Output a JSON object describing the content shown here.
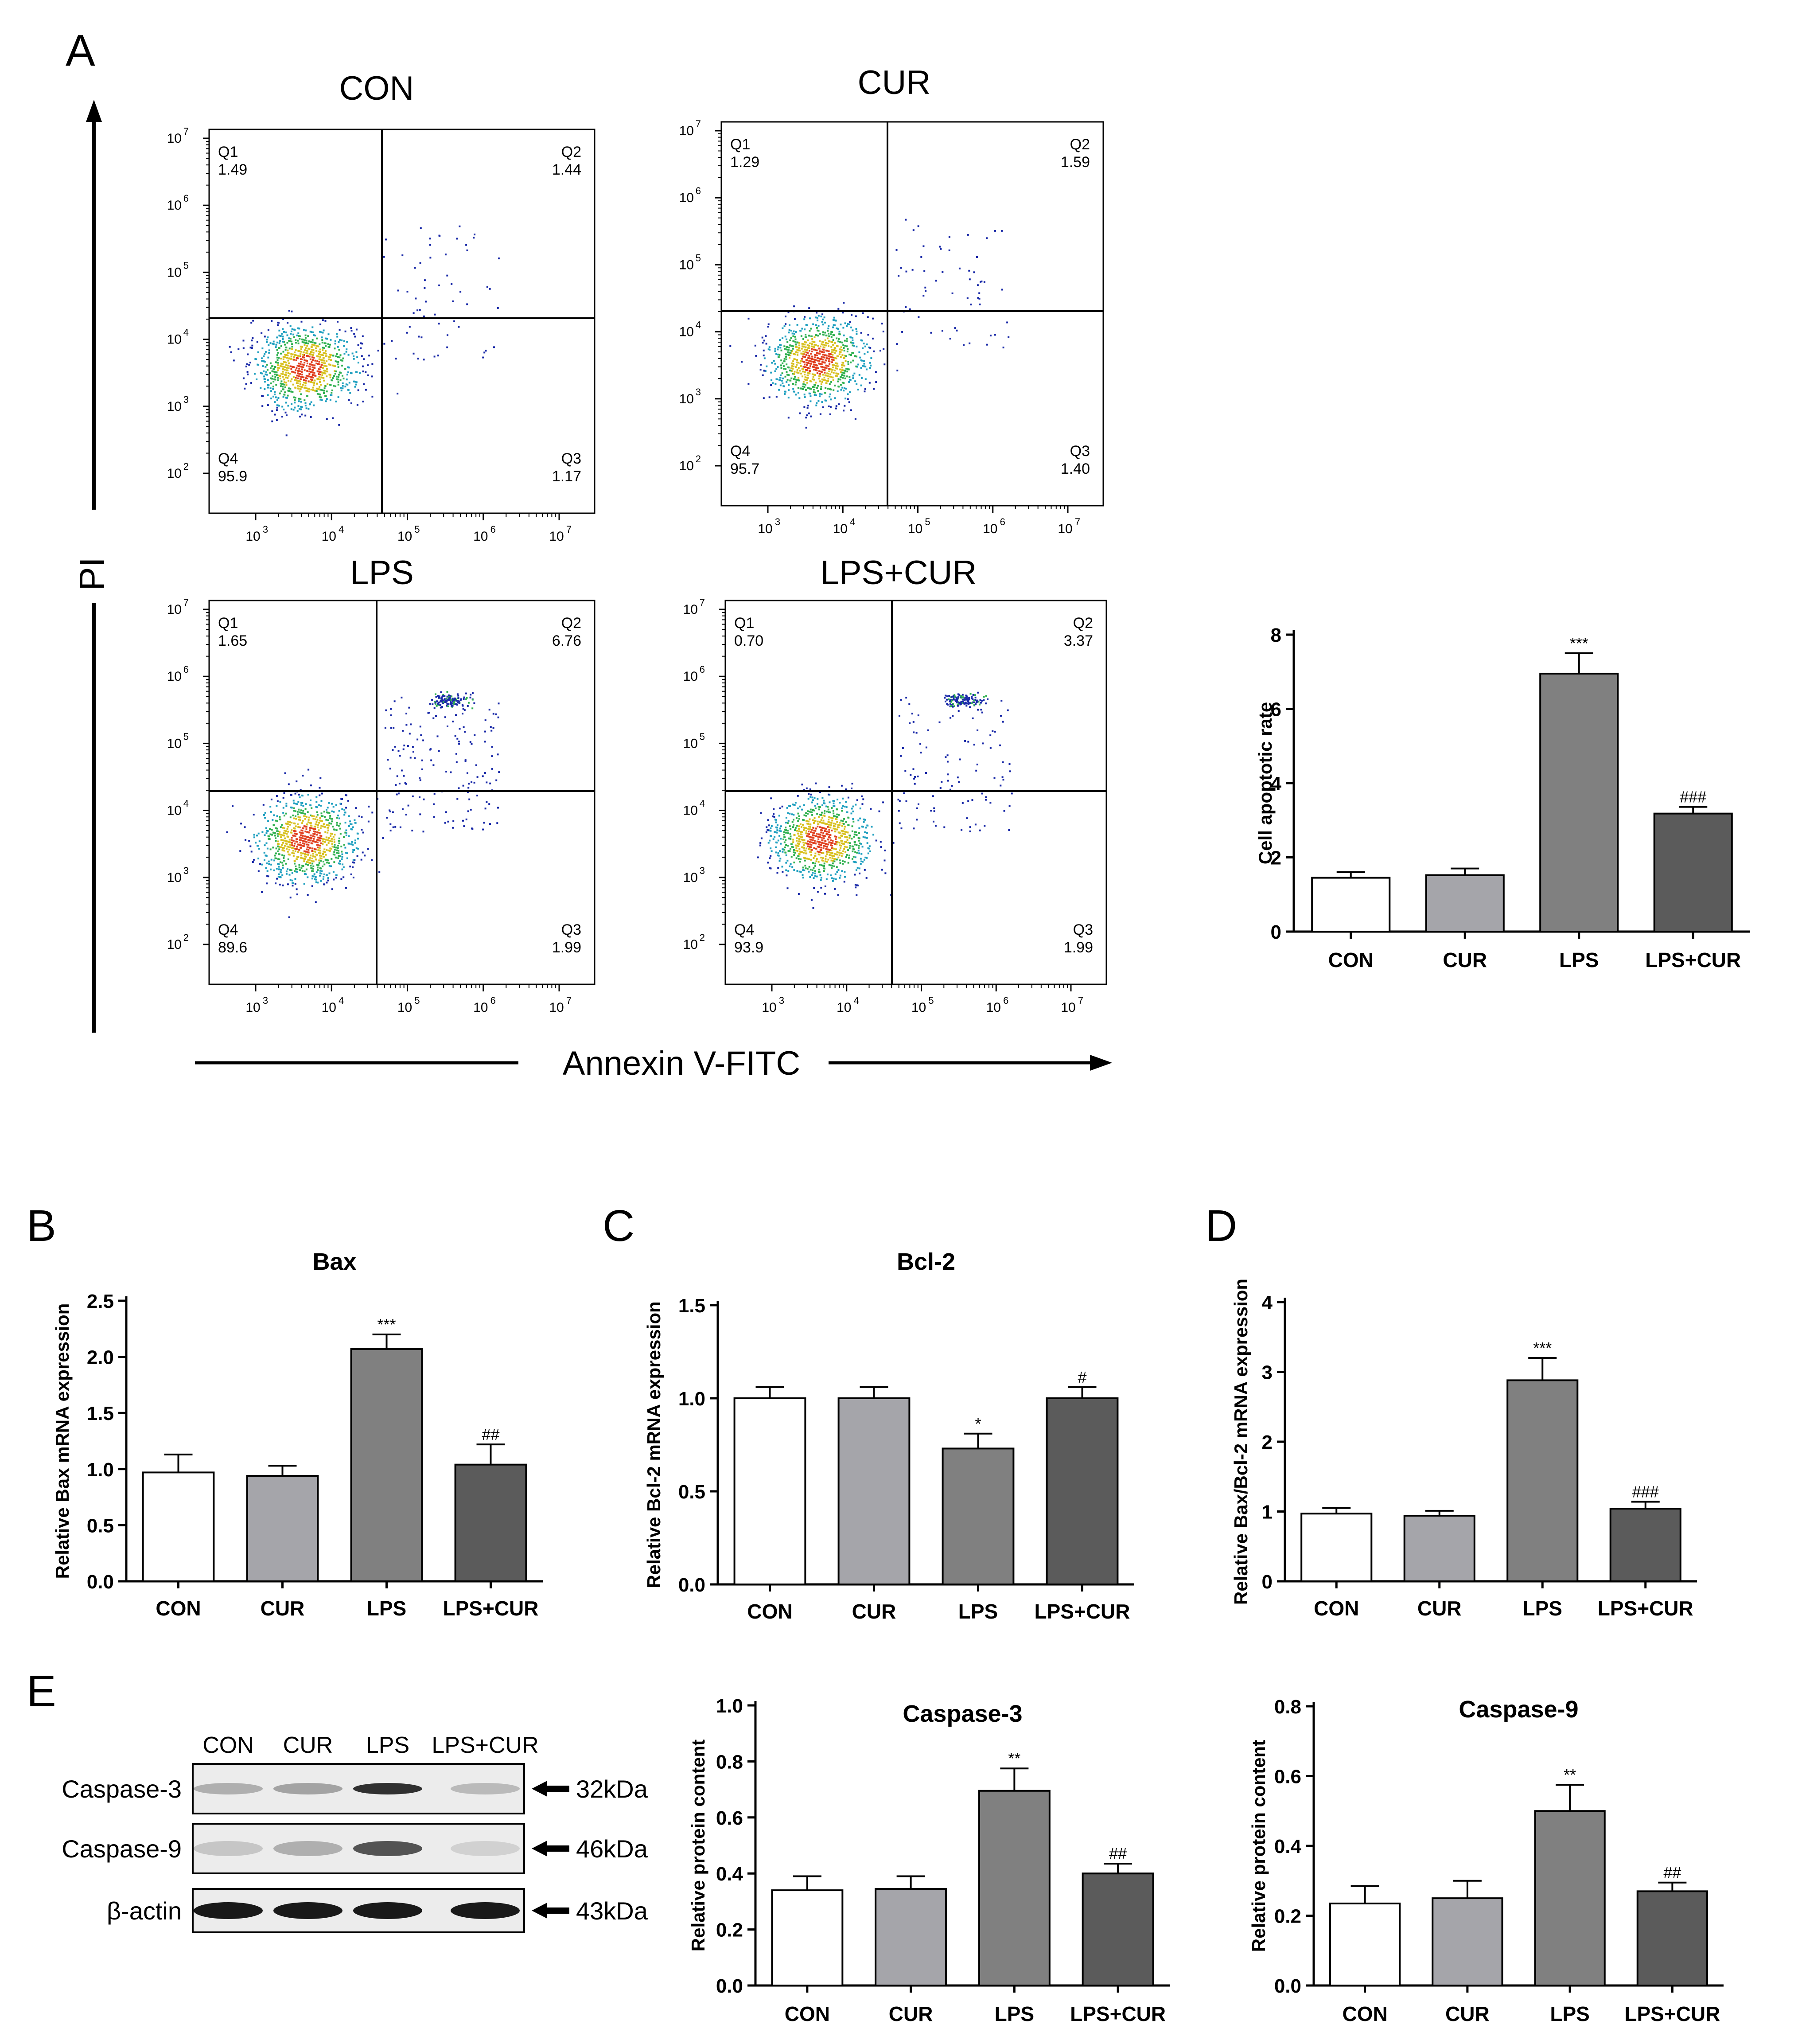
{
  "panel_letters": {
    "A": "A",
    "B": "B",
    "C": "C",
    "D": "D",
    "E": "E"
  },
  "flow": {
    "y_axis_label": "PI",
    "x_axis_label": "Annexin V-FITC",
    "tick_exponents": [
      "2",
      "3",
      "4",
      "5",
      "6",
      "7"
    ],
    "plots": [
      {
        "title": "CON",
        "q1_label": "Q1",
        "q1": "1.49",
        "q2_label": "Q2",
        "q2": "1.44",
        "q3_label": "Q3",
        "q3": "1.17",
        "q4_label": "Q4",
        "q4": "95.9"
      },
      {
        "title": "CUR",
        "q1_label": "Q1",
        "q1": "1.29",
        "q2_label": "Q2",
        "q2": "1.59",
        "q3_label": "Q3",
        "q3": "1.40",
        "q4_label": "Q4",
        "q4": "95.7"
      },
      {
        "title": "LPS",
        "q1_label": "Q1",
        "q1": "1.65",
        "q2_label": "Q2",
        "q2": "6.76",
        "q3_label": "Q3",
        "q3": "1.99",
        "q4_label": "Q4",
        "q4": "89.6"
      },
      {
        "title": "LPS+CUR",
        "q1_label": "Q1",
        "q1": "0.70",
        "q2_label": "Q2",
        "q2": "3.37",
        "q3_label": "Q3",
        "q3": "1.99",
        "q4_label": "Q4",
        "q4": "93.9"
      }
    ]
  },
  "western_blot": {
    "lanes": [
      "CON",
      "CUR",
      "LPS",
      "LPS+CUR"
    ],
    "bands": [
      {
        "name": "Caspase-3",
        "size": "32kDa"
      },
      {
        "name": "Caspase-9",
        "size": "46kDa"
      },
      {
        "name": "β-actin",
        "size": "43kDa"
      }
    ]
  },
  "colors": {
    "CON": "#ffffff",
    "CUR": "#a5a5aa",
    "LPS": "#808080",
    "LPS+CUR": "#5b5b5b"
  },
  "chart_data": [
    {
      "id": "apoptosis",
      "type": "bar",
      "title": "",
      "ylabel": "Cell apoptotic rate",
      "categories": [
        "CON",
        "CUR",
        "LPS",
        "LPS+CUR"
      ],
      "values": [
        1.45,
        1.52,
        6.95,
        3.18
      ],
      "errors": [
        0.15,
        0.18,
        0.55,
        0.18
      ],
      "annotations": [
        "",
        "",
        "***",
        "###"
      ],
      "ylim": [
        0,
        8
      ],
      "yticks": [
        "0",
        "2",
        "4",
        "6",
        "8"
      ]
    },
    {
      "id": "bax",
      "type": "bar",
      "title": "Bax",
      "ylabel": "Relative Bax mRNA expression",
      "categories": [
        "CON",
        "CUR",
        "LPS",
        "LPS+CUR"
      ],
      "values": [
        0.97,
        0.94,
        2.07,
        1.04
      ],
      "errors": [
        0.16,
        0.09,
        0.13,
        0.18
      ],
      "annotations": [
        "",
        "",
        "***",
        "##"
      ],
      "ylim": [
        0,
        2.5
      ],
      "yticks": [
        "0.0",
        "0.5",
        "1.0",
        "1.5",
        "2.0",
        "2.5"
      ]
    },
    {
      "id": "bcl2",
      "type": "bar",
      "title": "Bcl-2",
      "ylabel": "Relative Bcl-2 mRNA expression",
      "categories": [
        "CON",
        "CUR",
        "LPS",
        "LPS+CUR"
      ],
      "values": [
        1.0,
        1.0,
        0.73,
        1.0
      ],
      "errors": [
        0.06,
        0.06,
        0.08,
        0.06
      ],
      "annotations": [
        "",
        "",
        "*",
        "#"
      ],
      "ylim": [
        0,
        1.5
      ],
      "yticks": [
        "0.0",
        "0.5",
        "1.0",
        "1.5"
      ]
    },
    {
      "id": "ratio",
      "type": "bar",
      "title": "",
      "ylabel": "Relative Bax/Bcl-2 mRNA expression",
      "categories": [
        "CON",
        "CUR",
        "LPS",
        "LPS+CUR"
      ],
      "values": [
        0.97,
        0.94,
        2.88,
        1.04
      ],
      "errors": [
        0.08,
        0.07,
        0.32,
        0.1
      ],
      "annotations": [
        "",
        "",
        "***",
        "###"
      ],
      "ylim": [
        0,
        4
      ],
      "yticks": [
        "0",
        "1",
        "2",
        "3",
        "4"
      ]
    },
    {
      "id": "casp3",
      "type": "bar",
      "title": "Caspase-3",
      "ylabel": "Relative protein content",
      "categories": [
        "CON",
        "CUR",
        "LPS",
        "LPS+CUR"
      ],
      "values": [
        0.34,
        0.345,
        0.695,
        0.4
      ],
      "errors": [
        0.05,
        0.045,
        0.08,
        0.035
      ],
      "annotations": [
        "",
        "",
        "**",
        "##"
      ],
      "ylim": [
        0,
        1.0
      ],
      "yticks": [
        "0.0",
        "0.2",
        "0.4",
        "0.6",
        "0.8",
        "1.0"
      ]
    },
    {
      "id": "casp9",
      "type": "bar",
      "title": "Caspase-9",
      "ylabel": "Relative protein content",
      "categories": [
        "CON",
        "CUR",
        "LPS",
        "LPS+CUR"
      ],
      "values": [
        0.235,
        0.25,
        0.5,
        0.27
      ],
      "errors": [
        0.05,
        0.05,
        0.075,
        0.025
      ],
      "annotations": [
        "",
        "",
        "**",
        "##"
      ],
      "ylim": [
        0,
        0.8
      ],
      "yticks": [
        "0.0",
        "0.2",
        "0.4",
        "0.6",
        "0.8"
      ]
    }
  ]
}
